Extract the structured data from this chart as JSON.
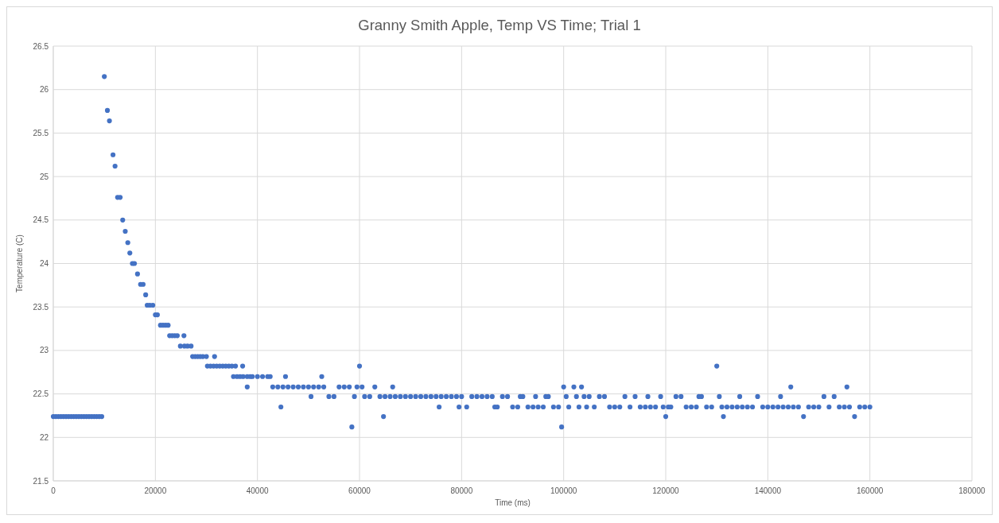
{
  "chart_data": {
    "type": "scatter",
    "title": "Granny Smith Apple, Temp VS Time; Trial 1",
    "xlabel": "Time (ms)",
    "ylabel": "Temperature (C)",
    "xlim": [
      0,
      180000
    ],
    "xticks": [
      0,
      20000,
      40000,
      60000,
      80000,
      100000,
      120000,
      140000,
      160000,
      180000
    ],
    "ylim": [
      21.5,
      26.5
    ],
    "yticks": [
      21.5,
      22,
      22.5,
      23,
      23.5,
      24,
      24.5,
      25,
      25.5,
      26,
      26.5
    ],
    "grid": true,
    "marker": "circle",
    "series": [
      {
        "color": "#4472c4",
        "x": [
          0,
          500,
          1000,
          1500,
          2000,
          2500,
          3000,
          3500,
          4000,
          4500,
          5000,
          5500,
          6000,
          6500,
          7000,
          7500,
          8000,
          8500,
          9000,
          9500,
          10000,
          10600,
          11000,
          11700,
          12100,
          12600,
          13100,
          13600,
          14100,
          14600,
          15000,
          15500,
          15900,
          16500,
          17100,
          17600,
          18100,
          18400,
          18900,
          19500,
          20000,
          20400,
          21000,
          21500,
          22000,
          22500,
          22800,
          23300,
          23800,
          24300,
          25600,
          24900,
          25700,
          26300,
          27000,
          27300,
          27800,
          28300,
          28800,
          29300,
          30000,
          31600,
          30200,
          30800,
          31400,
          32000,
          32600,
          33200,
          33800,
          34400,
          35000,
          35700,
          37100,
          35300,
          36000,
          36600,
          37200,
          38000,
          38600,
          39000,
          40000,
          41000,
          42000,
          42500,
          38000,
          43000,
          44000,
          44600,
          45000,
          45500,
          46000,
          47000,
          48000,
          49000,
          50000,
          50500,
          51000,
          52000,
          52600,
          53000,
          54000,
          55000,
          56000,
          57000,
          58000,
          58500,
          59000,
          59500,
          60000,
          60500,
          61000,
          62000,
          63000,
          64000,
          64700,
          65000,
          66000,
          66500,
          67000,
          68000,
          69000,
          70000,
          71000,
          72000,
          73000,
          74000,
          75000,
          75600,
          76000,
          77000,
          78000,
          79000,
          79500,
          80000,
          81000,
          82000,
          83000,
          84000,
          85000,
          86000,
          86500,
          87000,
          88000,
          89000,
          90000,
          91000,
          91500,
          92000,
          93000,
          94000,
          94500,
          95000,
          96000,
          96500,
          97000,
          98000,
          99000,
          99600,
          100000,
          100500,
          101000,
          102000,
          102500,
          103000,
          103500,
          104000,
          104500,
          105000,
          106000,
          107000,
          108000,
          109000,
          110000,
          111000,
          112000,
          113000,
          114000,
          115000,
          116000,
          116500,
          117000,
          118000,
          119000,
          119500,
          120000,
          120500,
          121000,
          122000,
          123000,
          124000,
          125000,
          126000,
          126500,
          127000,
          128000,
          129000,
          130000,
          130500,
          131000,
          131300,
          132000,
          133000,
          134000,
          134500,
          135000,
          136000,
          137000,
          138000,
          139000,
          140000,
          141000,
          142000,
          142500,
          143000,
          144000,
          144500,
          145000,
          146000,
          147000,
          148000,
          149000,
          150000,
          151000,
          152000,
          153000,
          154000,
          155000,
          155500,
          156000,
          157000,
          158000,
          159000,
          160000
        ],
        "values": [
          22.24,
          22.24,
          22.24,
          22.24,
          22.24,
          22.24,
          22.24,
          22.24,
          22.24,
          22.24,
          22.24,
          22.24,
          22.24,
          22.24,
          22.24,
          22.24,
          22.24,
          22.24,
          22.24,
          22.24,
          26.15,
          25.76,
          25.64,
          25.25,
          25.12,
          24.76,
          24.76,
          24.5,
          24.37,
          24.24,
          24.12,
          24.0,
          24.0,
          23.88,
          23.76,
          23.76,
          23.64,
          23.52,
          23.52,
          23.52,
          23.41,
          23.41,
          23.29,
          23.29,
          23.29,
          23.29,
          23.17,
          23.17,
          23.17,
          23.17,
          23.17,
          23.05,
          23.05,
          23.05,
          23.05,
          22.93,
          22.93,
          22.93,
          22.93,
          22.93,
          22.93,
          22.93,
          22.82,
          22.82,
          22.82,
          22.82,
          22.82,
          22.82,
          22.82,
          22.82,
          22.82,
          22.82,
          22.82,
          22.7,
          22.7,
          22.7,
          22.7,
          22.7,
          22.7,
          22.7,
          22.7,
          22.7,
          22.7,
          22.7,
          22.58,
          22.58,
          22.58,
          22.35,
          22.58,
          22.7,
          22.58,
          22.58,
          22.58,
          22.58,
          22.58,
          22.47,
          22.58,
          22.58,
          22.7,
          22.58,
          22.47,
          22.47,
          22.58,
          22.58,
          22.58,
          22.12,
          22.47,
          22.58,
          22.82,
          22.58,
          22.47,
          22.47,
          22.58,
          22.47,
          22.24,
          22.47,
          22.47,
          22.58,
          22.47,
          22.47,
          22.47,
          22.47,
          22.47,
          22.47,
          22.47,
          22.47,
          22.47,
          22.35,
          22.47,
          22.47,
          22.47,
          22.47,
          22.35,
          22.47,
          22.35,
          22.47,
          22.47,
          22.47,
          22.47,
          22.47,
          22.35,
          22.35,
          22.47,
          22.47,
          22.35,
          22.35,
          22.47,
          22.47,
          22.35,
          22.35,
          22.47,
          22.35,
          22.35,
          22.47,
          22.47,
          22.35,
          22.35,
          22.12,
          22.58,
          22.47,
          22.35,
          22.58,
          22.47,
          22.35,
          22.58,
          22.47,
          22.35,
          22.47,
          22.35,
          22.47,
          22.47,
          22.35,
          22.35,
          22.35,
          22.47,
          22.35,
          22.47,
          22.35,
          22.35,
          22.47,
          22.35,
          22.35,
          22.47,
          22.35,
          22.24,
          22.35,
          22.35,
          22.47,
          22.47,
          22.35,
          22.35,
          22.35,
          22.47,
          22.47,
          22.35,
          22.35,
          22.82,
          22.47,
          22.35,
          22.24,
          22.35,
          22.35,
          22.35,
          22.47,
          22.35,
          22.35,
          22.35,
          22.47,
          22.35,
          22.35,
          22.35,
          22.35,
          22.47,
          22.35,
          22.35,
          22.58,
          22.35,
          22.35,
          22.24,
          22.35,
          22.35,
          22.35,
          22.47,
          22.35,
          22.47,
          22.35,
          22.35,
          22.58,
          22.35,
          22.24,
          22.35,
          22.35,
          22.35
        ]
      }
    ]
  }
}
